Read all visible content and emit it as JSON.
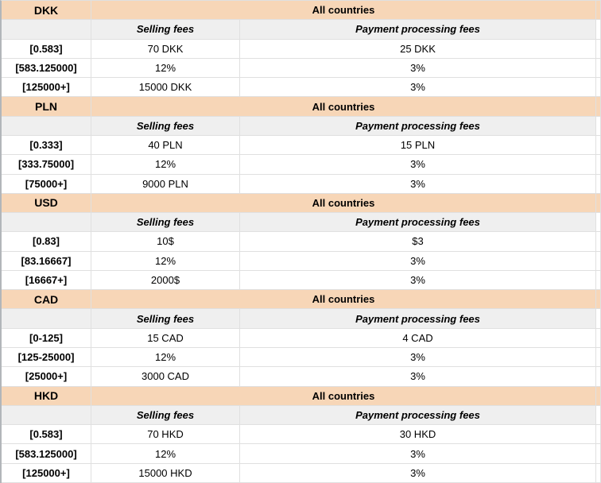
{
  "table": {
    "subheader": {
      "selling": "Selling fees",
      "processing": "Payment processing fees"
    },
    "sections": [
      {
        "currency": "DKK",
        "region": "All countries",
        "rows": [
          {
            "range": "[0.583]",
            "selling": "70 DKK",
            "processing": "25 DKK"
          },
          {
            "range": "[583.125000]",
            "selling": "12%",
            "processing": "3%"
          },
          {
            "range": "[125000+]",
            "selling": "15000 DKK",
            "processing": "3%"
          }
        ]
      },
      {
        "currency": "PLN",
        "region": "All countries",
        "rows": [
          {
            "range": "[0.333]",
            "selling": "40 PLN",
            "processing": "15 PLN"
          },
          {
            "range": "[333.75000]",
            "selling": "12%",
            "processing": "3%"
          },
          {
            "range": "[75000+]",
            "selling": "9000 PLN",
            "processing": "3%"
          }
        ]
      },
      {
        "currency": "USD",
        "region": "All countries",
        "rows": [
          {
            "range": "[0.83]",
            "selling": "10$",
            "processing": "$3"
          },
          {
            "range": "[83.16667]",
            "selling": "12%",
            "processing": "3%"
          },
          {
            "range": "[16667+]",
            "selling": "2000$",
            "processing": "3%"
          }
        ]
      },
      {
        "currency": "CAD",
        "region": "All countries",
        "rows": [
          {
            "range": "[0-125]",
            "selling": "15 CAD",
            "processing": "4 CAD"
          },
          {
            "range": "[125-25000]",
            "selling": "12%",
            "processing": "3%"
          },
          {
            "range": "[25000+]",
            "selling": "3000 CAD",
            "processing": "3%"
          }
        ]
      },
      {
        "currency": "HKD",
        "region": "All countries",
        "rows": [
          {
            "range": "[0.583]",
            "selling": "70 HKD",
            "processing": "30 HKD"
          },
          {
            "range": "[583.125000]",
            "selling": "12%",
            "processing": "3%"
          },
          {
            "range": "[125000+]",
            "selling": "15000 HKD",
            "processing": "3%"
          }
        ]
      }
    ]
  },
  "colors": {
    "section_header_bg": "#f7d6b7",
    "subheader_bg": "#efefef",
    "gridline": "#e0e0e0",
    "left_border": "#b2b6ba",
    "text": "#000000"
  }
}
